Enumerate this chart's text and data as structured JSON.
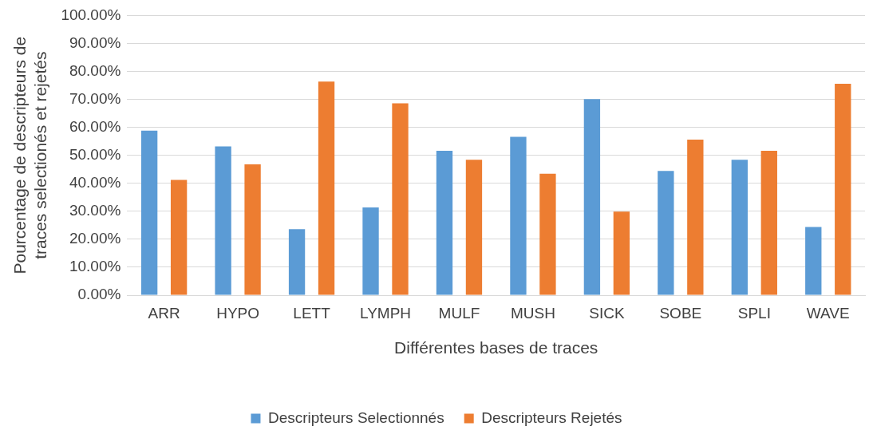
{
  "chart_data": {
    "type": "bar",
    "xlabel": "Différentes bases de traces",
    "ylabel": "Pourcentage de descripteurs de traces selectionés et rejetés",
    "categories": [
      "ARR",
      "HYPO",
      "LETT",
      "LYMPH",
      "MULF",
      "MUSH",
      "SICK",
      "SOBE",
      "SPLI",
      "WAVE"
    ],
    "series": [
      {
        "name": "Descripteurs Selectionnés",
        "color": "#5b9bd5",
        "values": [
          58.8,
          53.2,
          23.6,
          31.4,
          51.6,
          56.6,
          70.1,
          44.4,
          48.4,
          24.4
        ]
      },
      {
        "name": "Descripteurs Rejetés",
        "color": "#ed7d31",
        "values": [
          41.2,
          46.8,
          76.4,
          68.6,
          48.4,
          43.4,
          29.9,
          55.6,
          51.6,
          75.6
        ]
      }
    ],
    "ylim": [
      0,
      100
    ],
    "yticks": [
      {
        "value": 0,
        "label": "0.00%"
      },
      {
        "value": 10,
        "label": "10.00%"
      },
      {
        "value": 20,
        "label": "20.00%"
      },
      {
        "value": 30,
        "label": "30.00%"
      },
      {
        "value": 40,
        "label": "40.00%"
      },
      {
        "value": 50,
        "label": "50.00%"
      },
      {
        "value": 60,
        "label": "60.00%"
      },
      {
        "value": 70,
        "label": "70.00%"
      },
      {
        "value": 80,
        "label": "80.00%"
      },
      {
        "value": 90,
        "label": "90.00%"
      },
      {
        "value": 100,
        "label": "100.00%"
      }
    ],
    "grid": "y",
    "legend": "bottom"
  }
}
